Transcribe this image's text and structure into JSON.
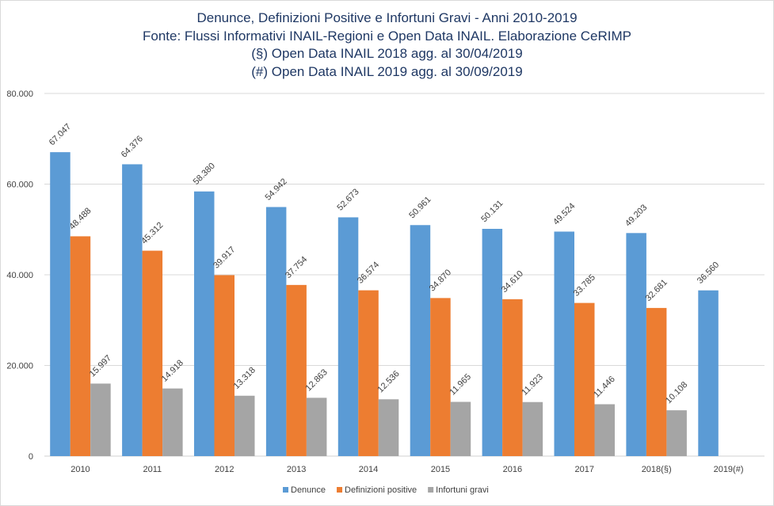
{
  "chart_data": {
    "type": "bar",
    "title_lines": [
      "Denunce, Definizioni Positive e Infortuni Gravi - Anni 2010-2019",
      "Fonte: Flussi Informativi INAIL-Regioni e Open Data INAIL. Elaborazione CeRIMP",
      "(§) Open Data INAIL 2018 agg. al 30/04/2019",
      "(#) Open Data INAIL 2019 agg. al 30/09/2019"
    ],
    "categories": [
      "2010",
      "2011",
      "2012",
      "2013",
      "2014",
      "2015",
      "2016",
      "2017",
      "2018(§)",
      "2019(#)"
    ],
    "series": [
      {
        "name": "Denunce",
        "color": "#5b9bd5",
        "values": [
          67047,
          64376,
          58380,
          54942,
          52673,
          50961,
          50131,
          49524,
          49203,
          36560
        ],
        "labels": [
          "67.047",
          "64.376",
          "58.380",
          "54.942",
          "52.673",
          "50.961",
          "50.131",
          "49.524",
          "49.203",
          "36.560"
        ]
      },
      {
        "name": "Definizioni positive",
        "color": "#ed7d31",
        "values": [
          48488,
          45312,
          39917,
          37754,
          36574,
          34870,
          34610,
          33785,
          32681,
          null
        ],
        "labels": [
          "48.488",
          "45.312",
          "39.917",
          "37.754",
          "36.574",
          "34.870",
          "34.610",
          "33.785",
          "32.681",
          null
        ]
      },
      {
        "name": "Infortuni gravi",
        "color": "#a5a5a5",
        "values": [
          15997,
          14918,
          13318,
          12863,
          12536,
          11965,
          11923,
          11446,
          10108,
          null
        ],
        "labels": [
          "15.997",
          "14.918",
          "13.318",
          "12.863",
          "12.536",
          "11.965",
          "11.923",
          "11.446",
          "10.108",
          null
        ]
      }
    ],
    "ylim": [
      0,
      80000
    ],
    "yticks": [
      0,
      20000,
      40000,
      60000,
      80000
    ],
    "ytick_labels": [
      "0",
      "20.000",
      "40.000",
      "60.000",
      "80.000"
    ],
    "grid": true,
    "legend": "bottom",
    "xlabel": "",
    "ylabel": ""
  }
}
